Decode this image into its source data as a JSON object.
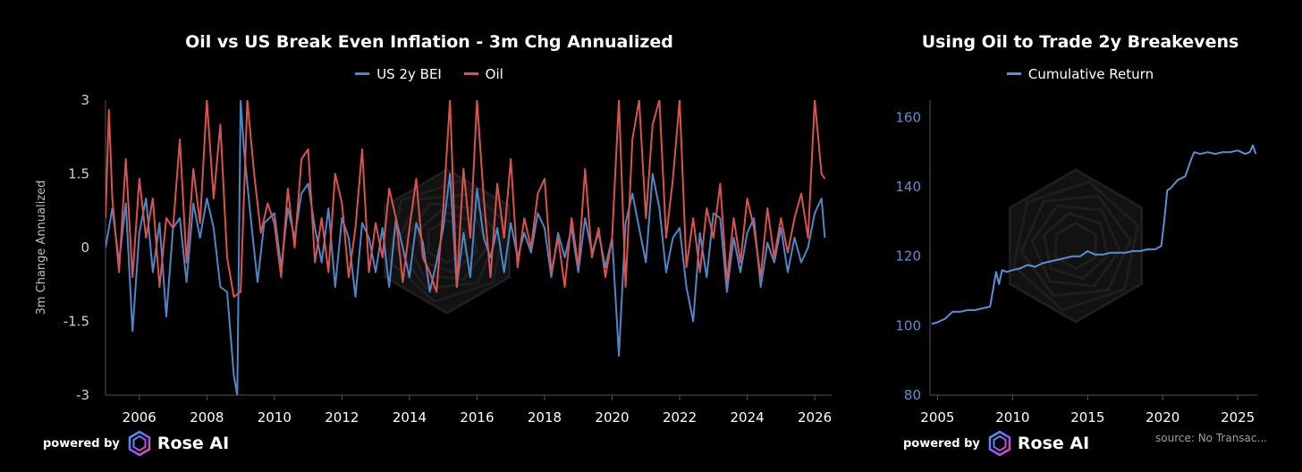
{
  "branding": {
    "powered_by": "powered by",
    "brand": "Rose AI"
  },
  "colors": {
    "bei": "#4f86c6",
    "oil": "#d9534f",
    "cum": "#5b8fd4",
    "axis": "#555555",
    "tick_left": "#d0d0d0",
    "tick_right": "#6b8cc4"
  },
  "icons": {
    "logo": "rose-ai-logo-icon",
    "watermark": "hexagon-watermark-icon"
  },
  "source_note": "source: No Transac...",
  "chart_data": [
    {
      "type": "line",
      "title": "Oil vs US Break Even Inflation - 3m Chg Annualized",
      "ylabel": "3m Change Annualized",
      "xlim": [
        2005.0,
        2026.5
      ],
      "ylim": [
        -3,
        3
      ],
      "yticks": [
        3,
        1.5,
        0,
        -1.5,
        -3
      ],
      "ytick_labels": [
        "3",
        "1.5",
        "0",
        "-1.5",
        "-3"
      ],
      "xticks": [
        2006,
        2008,
        2010,
        2012,
        2014,
        2016,
        2018,
        2020,
        2022,
        2024,
        2026
      ],
      "xtick_labels": [
        "2006",
        "2008",
        "2010",
        "2012",
        "2014",
        "2016",
        "2018",
        "2020",
        "2022",
        "2024",
        "2026"
      ],
      "legend_position": "top-center",
      "grid": false,
      "series": [
        {
          "name": "US 2y BEI",
          "x": [
            2005.0,
            2005.2,
            2005.4,
            2005.6,
            2005.8,
            2006.0,
            2006.2,
            2006.4,
            2006.6,
            2006.8,
            2007.0,
            2007.2,
            2007.4,
            2007.6,
            2007.8,
            2008.0,
            2008.2,
            2008.4,
            2008.6,
            2008.8,
            2008.9,
            2009.0,
            2009.1,
            2009.3,
            2009.5,
            2009.7,
            2010.0,
            2010.2,
            2010.4,
            2010.6,
            2010.8,
            2011.0,
            2011.2,
            2011.4,
            2011.6,
            2011.8,
            2012.0,
            2012.2,
            2012.4,
            2012.6,
            2012.8,
            2013.0,
            2013.2,
            2013.4,
            2013.6,
            2013.8,
            2014.0,
            2014.2,
            2014.4,
            2014.6,
            2014.8,
            2015.0,
            2015.2,
            2015.4,
            2015.6,
            2015.8,
            2016.0,
            2016.2,
            2016.4,
            2016.6,
            2016.8,
            2017.0,
            2017.2,
            2017.4,
            2017.6,
            2017.8,
            2018.0,
            2018.2,
            2018.4,
            2018.6,
            2018.8,
            2019.0,
            2019.2,
            2019.4,
            2019.6,
            2019.8,
            2020.0,
            2020.2,
            2020.4,
            2020.6,
            2020.8,
            2021.0,
            2021.2,
            2021.4,
            2021.6,
            2021.8,
            2022.0,
            2022.2,
            2022.4,
            2022.6,
            2022.8,
            2023.0,
            2023.2,
            2023.4,
            2023.6,
            2023.8,
            2024.0,
            2024.2,
            2024.4,
            2024.6,
            2024.8,
            2025.0,
            2025.2,
            2025.4,
            2025.6,
            2025.8,
            2026.0,
            2026.2,
            2026.3
          ],
          "y": [
            0.0,
            0.8,
            -0.3,
            0.9,
            -1.7,
            0.3,
            1.0,
            -0.5,
            0.5,
            -1.4,
            0.4,
            0.6,
            -0.7,
            0.9,
            0.2,
            1.0,
            0.4,
            -0.8,
            -0.9,
            -2.6,
            -3.0,
            3.0,
            2.0,
            0.6,
            -0.7,
            0.5,
            0.7,
            -0.4,
            0.8,
            0.2,
            1.1,
            1.3,
            0.4,
            -0.3,
            0.8,
            -0.8,
            0.6,
            0.2,
            -1.0,
            0.5,
            0.2,
            -0.5,
            0.4,
            -0.8,
            0.6,
            0.0,
            -0.6,
            0.5,
            0.1,
            -0.9,
            -0.3,
            0.4,
            1.5,
            -0.8,
            0.3,
            -0.6,
            1.2,
            0.2,
            -0.2,
            0.4,
            -0.5,
            0.5,
            -0.2,
            0.3,
            -0.1,
            0.7,
            0.4,
            -0.6,
            0.3,
            -0.2,
            0.4,
            -0.5,
            0.6,
            -0.1,
            0.3,
            -0.4,
            0.2,
            -2.2,
            0.5,
            1.1,
            0.4,
            -0.3,
            1.5,
            0.8,
            -0.5,
            0.2,
            0.4,
            -0.8,
            -1.5,
            0.3,
            -0.6,
            0.7,
            0.6,
            -0.9,
            0.2,
            -0.5,
            0.3,
            0.6,
            -0.8,
            0.1,
            -0.3,
            0.4,
            -0.5,
            0.2,
            -0.3,
            0.0,
            0.7,
            1.0,
            0.2
          ]
        },
        {
          "name": "Oil",
          "x": [
            2005.0,
            2005.1,
            2005.2,
            2005.4,
            2005.6,
            2005.8,
            2006.0,
            2006.2,
            2006.4,
            2006.6,
            2006.8,
            2007.0,
            2007.2,
            2007.4,
            2007.6,
            2007.8,
            2008.0,
            2008.2,
            2008.4,
            2008.6,
            2008.8,
            2009.0,
            2009.2,
            2009.4,
            2009.6,
            2009.8,
            2010.0,
            2010.2,
            2010.4,
            2010.6,
            2010.8,
            2011.0,
            2011.2,
            2011.4,
            2011.6,
            2011.8,
            2012.0,
            2012.2,
            2012.4,
            2012.6,
            2012.8,
            2013.0,
            2013.2,
            2013.4,
            2013.6,
            2013.8,
            2014.0,
            2014.2,
            2014.4,
            2014.6,
            2014.8,
            2015.0,
            2015.2,
            2015.4,
            2015.6,
            2015.8,
            2016.0,
            2016.2,
            2016.4,
            2016.6,
            2016.8,
            2017.0,
            2017.2,
            2017.4,
            2017.6,
            2017.8,
            2018.0,
            2018.2,
            2018.4,
            2018.6,
            2018.8,
            2019.0,
            2019.2,
            2019.4,
            2019.6,
            2019.8,
            2020.0,
            2020.2,
            2020.4,
            2020.6,
            2020.8,
            2021.0,
            2021.2,
            2021.4,
            2021.6,
            2021.8,
            2022.0,
            2022.2,
            2022.4,
            2022.6,
            2022.8,
            2023.0,
            2023.2,
            2023.4,
            2023.6,
            2023.8,
            2024.0,
            2024.2,
            2024.4,
            2024.6,
            2024.8,
            2025.0,
            2025.2,
            2025.4,
            2025.6,
            2025.8,
            2026.0,
            2026.2,
            2026.3
          ],
          "y": [
            0.6,
            2.8,
            1.0,
            -0.5,
            1.8,
            -0.6,
            1.4,
            0.2,
            1.0,
            -0.8,
            0.6,
            0.4,
            2.2,
            -0.3,
            1.6,
            0.5,
            3.0,
            1.0,
            2.5,
            -0.2,
            -1.0,
            -0.9,
            3.0,
            1.5,
            0.3,
            0.9,
            0.5,
            -0.6,
            1.2,
            0.0,
            1.8,
            2.0,
            -0.3,
            0.6,
            -0.5,
            1.5,
            0.9,
            -0.6,
            0.4,
            2.0,
            -0.5,
            0.5,
            -0.2,
            1.2,
            0.6,
            -0.7,
            0.4,
            1.4,
            -0.2,
            -0.5,
            -0.9,
            0.8,
            3.0,
            -0.8,
            1.6,
            0.2,
            3.0,
            1.0,
            -0.6,
            1.3,
            0.2,
            1.8,
            -0.4,
            0.6,
            0.0,
            1.1,
            1.4,
            -0.5,
            0.2,
            -0.8,
            0.6,
            -0.4,
            1.6,
            -0.2,
            0.4,
            -0.6,
            0.2,
            3.0,
            -0.8,
            2.2,
            3.0,
            0.6,
            2.5,
            3.0,
            0.2,
            1.4,
            3.0,
            -0.4,
            0.6,
            -0.5,
            0.8,
            0.2,
            1.3,
            -0.7,
            0.6,
            -0.3,
            1.0,
            0.4,
            -0.6,
            0.8,
            -0.2,
            0.6,
            -0.1,
            0.6,
            1.1,
            0.2,
            3.0,
            1.5,
            1.4
          ]
        }
      ]
    },
    {
      "type": "line",
      "title": "Using Oil to Trade 2y Breakevens",
      "xlim": [
        2004.5,
        2026.3
      ],
      "ylim": [
        80,
        165
      ],
      "yticks": [
        160,
        140,
        120,
        100,
        80
      ],
      "ytick_labels": [
        "160",
        "140",
        "120",
        "100",
        "80"
      ],
      "xticks": [
        2005,
        2010,
        2015,
        2020,
        2025
      ],
      "xtick_labels": [
        "2005",
        "2010",
        "2015",
        "2020",
        "2025"
      ],
      "legend_position": "top-center",
      "grid": false,
      "series": [
        {
          "name": "Cumulative Return",
          "x": [
            2004.6,
            2005.0,
            2005.5,
            2006.0,
            2006.5,
            2007.0,
            2007.5,
            2008.0,
            2008.5,
            2008.9,
            2009.1,
            2009.3,
            2009.6,
            2010.0,
            2010.5,
            2011.0,
            2011.5,
            2012.0,
            2012.5,
            2013.0,
            2013.5,
            2014.0,
            2014.5,
            2015.0,
            2015.5,
            2016.0,
            2016.5,
            2017.0,
            2017.5,
            2018.0,
            2018.5,
            2019.0,
            2019.5,
            2019.9,
            2020.1,
            2020.3,
            2020.5,
            2021.0,
            2021.5,
            2021.9,
            2022.1,
            2022.5,
            2023.0,
            2023.5,
            2024.0,
            2024.5,
            2025.0,
            2025.5,
            2025.8,
            2026.0,
            2026.2
          ],
          "y": [
            100.5,
            101.0,
            102.0,
            104.0,
            104.0,
            104.5,
            104.5,
            105.0,
            105.5,
            115.5,
            112.0,
            116.0,
            115.5,
            116.0,
            116.5,
            117.5,
            117.0,
            118.0,
            118.5,
            119.0,
            119.5,
            120.0,
            120.0,
            121.5,
            120.5,
            120.5,
            121.0,
            121.0,
            121.0,
            121.5,
            121.5,
            122.0,
            122.0,
            123.0,
            130.0,
            139.0,
            139.5,
            142.0,
            143.0,
            148.0,
            150.0,
            149.5,
            150.0,
            149.5,
            150.0,
            150.0,
            150.5,
            149.5,
            150.0,
            152.0,
            149.5
          ]
        }
      ]
    }
  ]
}
